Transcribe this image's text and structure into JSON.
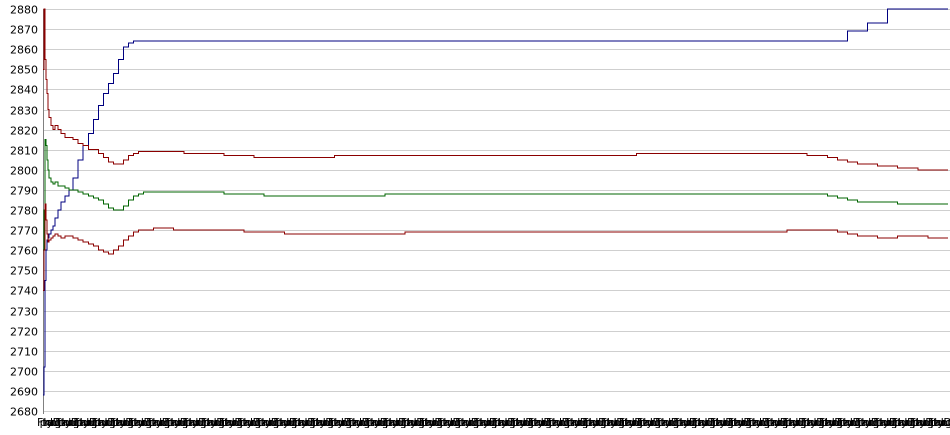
{
  "chart_data": {
    "type": "line",
    "title": "",
    "xlabel": "",
    "ylabel": "",
    "ylim": [
      2680,
      2880
    ],
    "yticks": [
      2680,
      2690,
      2700,
      2710,
      2720,
      2730,
      2740,
      2750,
      2760,
      2770,
      2780,
      2790,
      2800,
      2810,
      2820,
      2830,
      2840,
      2850,
      2860,
      2870,
      2880
    ],
    "grid": true,
    "legend": "none",
    "x_tick_labels": [
      "Fla",
      "pu",
      "ty",
      "nu",
      "ug",
      "ht",
      "Dar",
      "Fl",
      "pu",
      "ty",
      "nu",
      "ug",
      "ht",
      "Dar",
      "Fl",
      "pu",
      "ty",
      "nu",
      "ug",
      "ht",
      "Dar",
      "Fl",
      "pu",
      "ty",
      "nu",
      "ug",
      "ht",
      "Dar",
      "Fl",
      "pu",
      "ty",
      "nu",
      "ug",
      "ht",
      "Dar",
      "Fl",
      "pu",
      "ty",
      "nu",
      "ug",
      "ht",
      "Dar",
      "Fl",
      "pu",
      "ty",
      "nu",
      "ug",
      "ht",
      "Dar",
      "Fl",
      "pu",
      "ty",
      "nu",
      "ug",
      "ht",
      "Dar",
      "Fl",
      "pu",
      "ty",
      "nu",
      "ug",
      "ht",
      "Dar",
      "Fl",
      "pu",
      "ty",
      "nu",
      "ug",
      "ht",
      "Dar",
      "Fl",
      "pu",
      "ty",
      "nu",
      "ug",
      "ht",
      "Dar",
      "Fl",
      "pu",
      "ty",
      "nu",
      "ug",
      "ht",
      "Dar",
      "Fl",
      "pu",
      "ty",
      "nu",
      "ug",
      "ht",
      "Dar",
      "Fl",
      "pu",
      "ty",
      "nu",
      "ug",
      "ht",
      "Dar",
      "Fl",
      "pu",
      "ty",
      "nu",
      "ug",
      "ht",
      "Dar",
      "Fl",
      "pu",
      "ty",
      "nu",
      "ug",
      "ht",
      "Dar",
      "Fl",
      "pu",
      "ty",
      "nu",
      "ug",
      "ht",
      "Dar",
      "Fl",
      "pu",
      "ty",
      "nu",
      "ug",
      "ht",
      "Dar",
      "Fl",
      "pu",
      "ty",
      "nu",
      "ug",
      "ht",
      "Dar",
      "Fl",
      "pu",
      "ty",
      "nu",
      "ug",
      "ht",
      "Dar",
      "Fl",
      "pu",
      "ty",
      "nu",
      "ug",
      "ht",
      "Dar",
      "Fl",
      "pu",
      "ty",
      "nu",
      "ug",
      "ht",
      "Dar",
      "Fl",
      "pu",
      "ty",
      "nu",
      "ug",
      "ht",
      "Dar",
      "Fl",
      "pu",
      "ty",
      "nu",
      "ug",
      "ht",
      "Dar",
      "Fl",
      "pu",
      "ty",
      "nu",
      "ug",
      "ht",
      "Dar",
      "Fl",
      "pu",
      "ty",
      "nu",
      "ug",
      "ht",
      "Dar",
      "Fl",
      "pu",
      "ty",
      "nu",
      "ug",
      "ht",
      "Dar",
      "Fl",
      "pu",
      "ty",
      "nu",
      "ug",
      "ht",
      "Dar",
      "Fl",
      "pu",
      "ty",
      "nu",
      "ug",
      "ht",
      "Dar",
      "Fl",
      "pu",
      "ty",
      "nu",
      "ug",
      "ht",
      "Dar",
      "Fl",
      "pu",
      "ty",
      "nu",
      "ug",
      "ht",
      "Dar",
      "Fl",
      "pu",
      "ty",
      "nu",
      "ug",
      "ht",
      "Dar",
      "Fl",
      "pu",
      "ty",
      "nu",
      "ug",
      "ht",
      "Dar",
      "Fl",
      "pu",
      "ty",
      "nu",
      "ug",
      "ht",
      "Dar",
      "Fl",
      "pu",
      "ty",
      "nu",
      "ug",
      "ht",
      "Dar",
      "Fl",
      "pu",
      "ty",
      "nu",
      "ug",
      "ht",
      "Dar",
      "Fl",
      "pu",
      "ty",
      "nu",
      "ug",
      "ht",
      "Dar",
      "Fl",
      "pu",
      "ty",
      "nu",
      "ug",
      "ht",
      "Dar",
      "Fl",
      "pu",
      "ty",
      "nu",
      "ug",
      "ht",
      "Dar",
      "Fl",
      "pu",
      "ty",
      "nu",
      "ug",
      "ht",
      "Dar",
      "Fl",
      "pu",
      "ty",
      "nu",
      "ug",
      "ht",
      "Dar",
      "Fl",
      "pu",
      "ty",
      "nu",
      "ug",
      "ht",
      "Dar",
      "Fl",
      "pu",
      "ty",
      "nu",
      "ug",
      "ht",
      "Dar",
      "Fl",
      "pu",
      "ty",
      "nu",
      "ug",
      "ht",
      "Dar",
      "Fl",
      "pu",
      "ty",
      "nu",
      "ug",
      "ht",
      "Dar",
      "Fl",
      "pu",
      "ty",
      "nu",
      "ug",
      "ht",
      "Dar",
      "Fl",
      "pu",
      "ty",
      "nu",
      "ug",
      "ht",
      "Dar",
      "Fl",
      "pu",
      "ty",
      "nu",
      "ug",
      "ht",
      "Dar",
      "Fl",
      "pu",
      "ty",
      "nu",
      "ug",
      "ht",
      "Dar",
      "Fl",
      "pu",
      "ty",
      "nu",
      "ug",
      "ht",
      "Dar"
    ],
    "x": [
      0,
      1,
      2,
      3,
      4,
      5,
      6,
      8,
      10,
      12,
      15,
      18,
      22,
      26,
      30,
      35,
      40,
      45,
      50,
      55,
      60,
      65,
      70,
      75,
      80,
      85,
      90,
      95,
      100,
      110,
      120,
      130,
      140,
      150,
      160,
      170,
      180,
      190,
      200,
      210,
      220,
      230,
      240,
      250,
      260,
      270,
      280,
      290,
      300,
      310,
      320,
      330,
      340,
      350,
      360,
      370,
      380,
      390,
      400,
      410,
      420,
      430,
      440,
      450,
      460,
      470,
      480,
      490,
      500,
      510,
      520,
      530,
      540,
      550,
      560,
      570,
      580,
      590,
      600,
      610,
      620,
      630,
      640,
      650,
      660,
      670,
      680,
      690,
      700,
      710,
      720,
      730,
      740,
      750,
      760,
      770,
      780,
      790,
      800,
      810,
      820,
      830,
      840,
      850,
      860,
      870,
      880,
      890,
      900
    ],
    "series": [
      {
        "color": "#000080",
        "values": [
          2688,
          2702,
          2745,
          2760,
          2765,
          2766,
          2768,
          2770,
          2772,
          2776,
          2780,
          2784,
          2787,
          2790,
          2796,
          2805,
          2812,
          2818,
          2825,
          2832,
          2838,
          2843,
          2848,
          2855,
          2861,
          2863,
          2864,
          2864,
          2864,
          2864,
          2864,
          2864,
          2864,
          2864,
          2864,
          2864,
          2864,
          2864,
          2864,
          2864,
          2864,
          2864,
          2864,
          2864,
          2864,
          2864,
          2864,
          2864,
          2864,
          2864,
          2864,
          2864,
          2864,
          2864,
          2864,
          2864,
          2864,
          2864,
          2864,
          2864,
          2864,
          2864,
          2864,
          2864,
          2864,
          2864,
          2864,
          2864,
          2864,
          2864,
          2864,
          2864,
          2864,
          2864,
          2864,
          2864,
          2864,
          2864,
          2864,
          2864,
          2864,
          2864,
          2864,
          2864,
          2864,
          2864,
          2864,
          2864,
          2864,
          2864,
          2864,
          2864,
          2864,
          2864,
          2864,
          2864,
          2864,
          2864,
          2869,
          2869,
          2873,
          2873,
          2880,
          2880,
          2880,
          2880,
          2880,
          2880,
          2880
        ]
      },
      {
        "color": "#8b0000",
        "values": [
          2850,
          2880,
          2855,
          2845,
          2838,
          2830,
          2826,
          2822,
          2820,
          2822,
          2820,
          2818,
          2816,
          2816,
          2815,
          2813,
          2812,
          2810,
          2810,
          2808,
          2806,
          2804,
          2803,
          2803,
          2805,
          2807,
          2808,
          2809,
          2809,
          2809,
          2809,
          2809,
          2808,
          2808,
          2808,
          2808,
          2807,
          2807,
          2807,
          2806,
          2806,
          2806,
          2806,
          2806,
          2806,
          2806,
          2806,
          2807,
          2807,
          2807,
          2807,
          2807,
          2807,
          2807,
          2807,
          2807,
          2807,
          2807,
          2807,
          2807,
          2807,
          2807,
          2807,
          2807,
          2807,
          2807,
          2807,
          2807,
          2807,
          2807,
          2807,
          2807,
          2807,
          2807,
          2807,
          2807,
          2807,
          2808,
          2808,
          2808,
          2808,
          2808,
          2808,
          2808,
          2808,
          2808,
          2808,
          2808,
          2808,
          2808,
          2808,
          2808,
          2808,
          2808,
          2807,
          2807,
          2806,
          2805,
          2804,
          2803,
          2803,
          2802,
          2802,
          2801,
          2801,
          2800,
          2800,
          2800,
          2800
        ]
      },
      {
        "color": "#006400",
        "values": [
          2760,
          2780,
          2815,
          2812,
          2805,
          2800,
          2796,
          2794,
          2793,
          2794,
          2792,
          2792,
          2791,
          2790,
          2790,
          2789,
          2788,
          2787,
          2786,
          2785,
          2783,
          2781,
          2780,
          2780,
          2782,
          2785,
          2787,
          2788,
          2789,
          2789,
          2789,
          2789,
          2789,
          2789,
          2789,
          2789,
          2788,
          2788,
          2788,
          2788,
          2787,
          2787,
          2787,
          2787,
          2787,
          2787,
          2787,
          2787,
          2787,
          2787,
          2787,
          2787,
          2788,
          2788,
          2788,
          2788,
          2788,
          2788,
          2788,
          2788,
          2788,
          2788,
          2788,
          2788,
          2788,
          2788,
          2788,
          2788,
          2788,
          2788,
          2788,
          2788,
          2788,
          2788,
          2788,
          2788,
          2788,
          2788,
          2788,
          2788,
          2788,
          2788,
          2788,
          2788,
          2788,
          2788,
          2788,
          2788,
          2788,
          2788,
          2788,
          2788,
          2788,
          2788,
          2788,
          2788,
          2787,
          2786,
          2785,
          2784,
          2784,
          2784,
          2784,
          2783,
          2783,
          2783,
          2783,
          2783,
          2783
        ]
      },
      {
        "color": "#8b0000",
        "values": [
          2740,
          2760,
          2783,
          2775,
          2768,
          2764,
          2765,
          2766,
          2767,
          2768,
          2767,
          2766,
          2767,
          2767,
          2766,
          2765,
          2764,
          2763,
          2762,
          2760,
          2759,
          2758,
          2760,
          2762,
          2765,
          2767,
          2769,
          2770,
          2770,
          2771,
          2771,
          2770,
          2770,
          2770,
          2770,
          2770,
          2770,
          2770,
          2769,
          2769,
          2769,
          2769,
          2768,
          2768,
          2768,
          2768,
          2768,
          2768,
          2768,
          2768,
          2768,
          2768,
          2768,
          2768,
          2769,
          2769,
          2769,
          2769,
          2769,
          2769,
          2769,
          2769,
          2769,
          2769,
          2769,
          2769,
          2769,
          2769,
          2769,
          2769,
          2769,
          2769,
          2769,
          2769,
          2769,
          2769,
          2769,
          2769,
          2769,
          2769,
          2769,
          2769,
          2769,
          2769,
          2769,
          2769,
          2769,
          2769,
          2769,
          2769,
          2769,
          2769,
          2770,
          2770,
          2770,
          2770,
          2770,
          2769,
          2768,
          2767,
          2767,
          2766,
          2766,
          2767,
          2767,
          2767,
          2766,
          2766,
          2766
        ]
      }
    ]
  }
}
